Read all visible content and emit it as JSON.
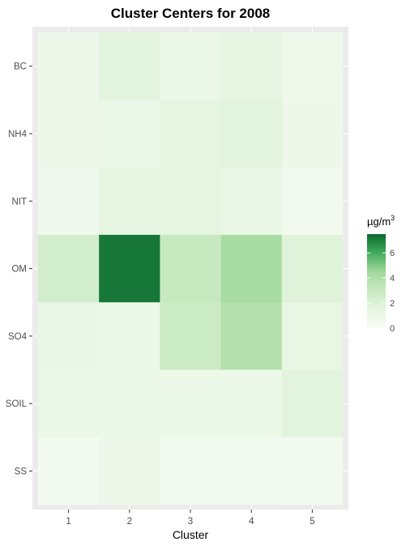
{
  "chart_data": {
    "type": "heatmap",
    "title": "Cluster Centers for 2008",
    "xlabel": "Cluster",
    "ylabel": "",
    "x_categories": [
      "1",
      "2",
      "3",
      "4",
      "5"
    ],
    "y_categories": [
      "BC",
      "NH4",
      "NIT",
      "OM",
      "SO4",
      "SOIL",
      "SS"
    ],
    "values": [
      [
        0.8,
        1.6,
        0.9,
        1.3,
        0.7
      ],
      [
        0.8,
        1.0,
        1.4,
        1.6,
        0.8
      ],
      [
        0.6,
        1.4,
        1.5,
        1.1,
        0.4
      ],
      [
        2.5,
        7.2,
        3.0,
        4.2,
        1.8
      ],
      [
        1.1,
        1.0,
        2.8,
        3.8,
        1.2
      ],
      [
        1.0,
        0.9,
        0.9,
        0.9,
        1.6
      ],
      [
        0.3,
        0.8,
        0.5,
        0.5,
        0.4
      ]
    ],
    "legend": {
      "title": "µg/m",
      "title_superscript": "3",
      "ticks": [
        0,
        2,
        4,
        6
      ],
      "tick_labels": [
        "0",
        "2",
        "4",
        "6"
      ],
      "range": [
        0,
        7.5
      ],
      "low_color": "#f7fcf5",
      "high_color": "#0b6a30",
      "placement": "right"
    },
    "panel_background": "#ebebeb",
    "grid": true
  }
}
